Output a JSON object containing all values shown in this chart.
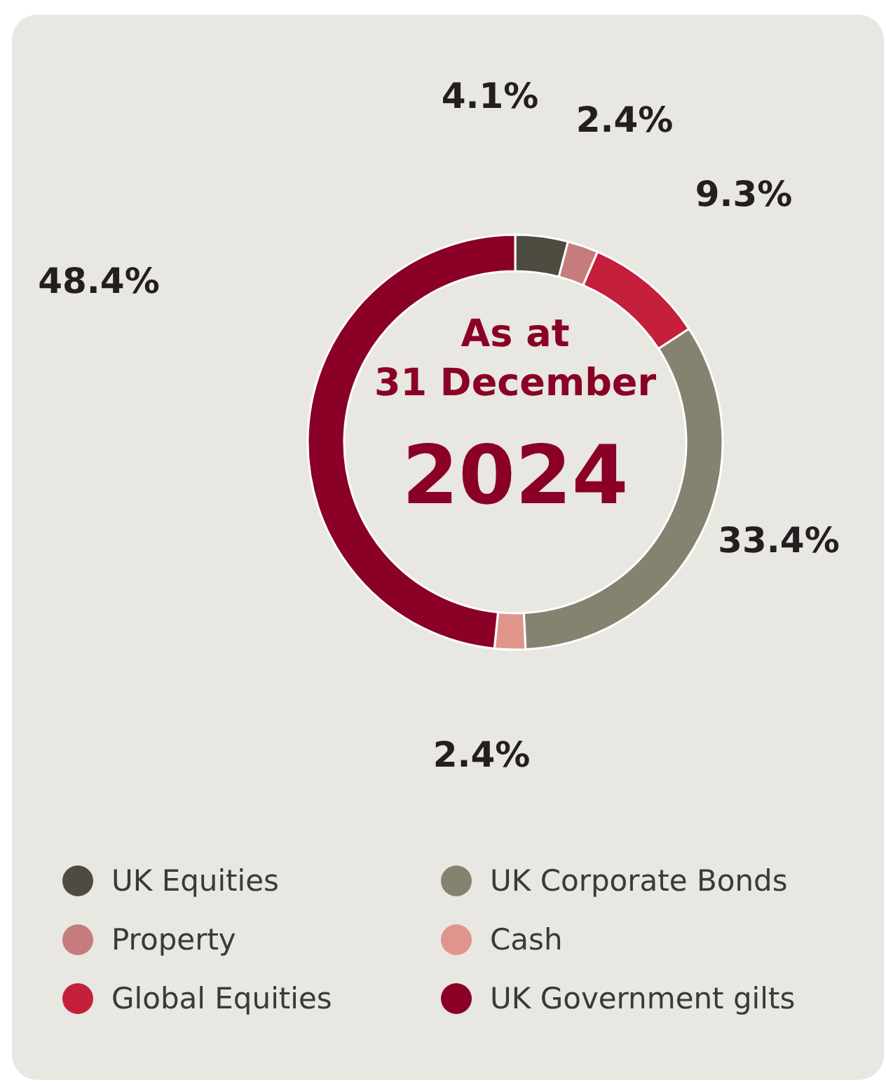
{
  "chart_data": {
    "type": "donut",
    "title": "As at 31 December",
    "subtitle": "2024",
    "categories": [
      "UK Equities",
      "Property",
      "Global Equities",
      "UK Corporate Bonds",
      "Cash",
      "UK Government gilts"
    ],
    "values": [
      4.1,
      2.4,
      9.3,
      33.4,
      2.4,
      48.4
    ],
    "colors": [
      "#4e4b40",
      "#c67c7c",
      "#c41f3b",
      "#85836f",
      "#e0958c",
      "#8a0027"
    ],
    "value_labels": [
      "4.1%",
      "2.4%",
      "9.3%",
      "33.4%",
      "2.4%",
      "48.4%"
    ],
    "legend": "bottom"
  }
}
